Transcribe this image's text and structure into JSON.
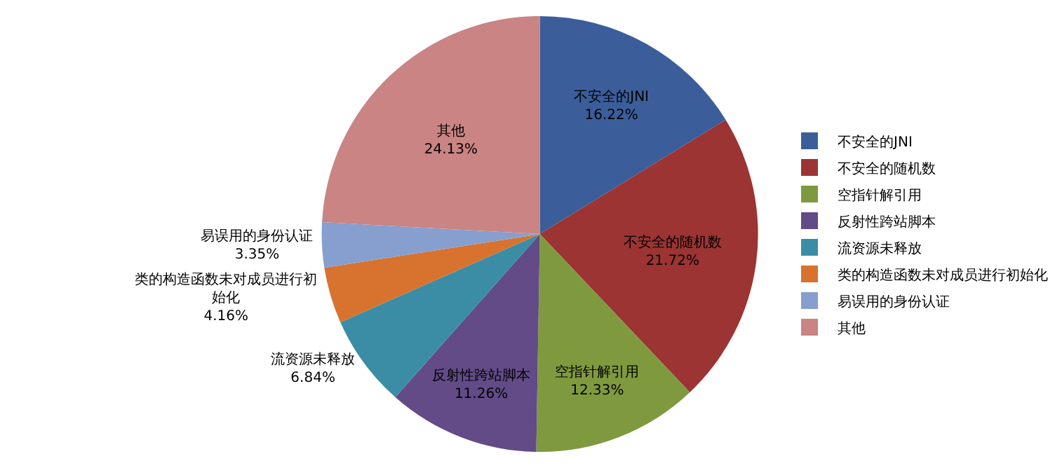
{
  "chart_data": {
    "type": "pie",
    "categories": [
      "不安全的JNI",
      "不安全的随机数",
      "空指针解引用",
      "反射性跨站脚本",
      "流资源未释放",
      "类的构造函数未对成员进行初始化",
      "易误用的身份认证",
      "其他"
    ],
    "values": [
      16.22,
      21.72,
      12.33,
      11.26,
      6.84,
      4.16,
      3.35,
      24.13
    ],
    "colors": [
      "#3b5e9b",
      "#9b3432",
      "#7f9a3e",
      "#624b87",
      "#3a8da5",
      "#d7732e",
      "#869fcf",
      "#c98483"
    ],
    "value_labels": [
      "16.22%",
      "21.72%",
      "12.33%",
      "11.26%",
      "6.84%",
      "4.16%",
      "3.35%",
      "24.13%"
    ],
    "legend": "right"
  }
}
